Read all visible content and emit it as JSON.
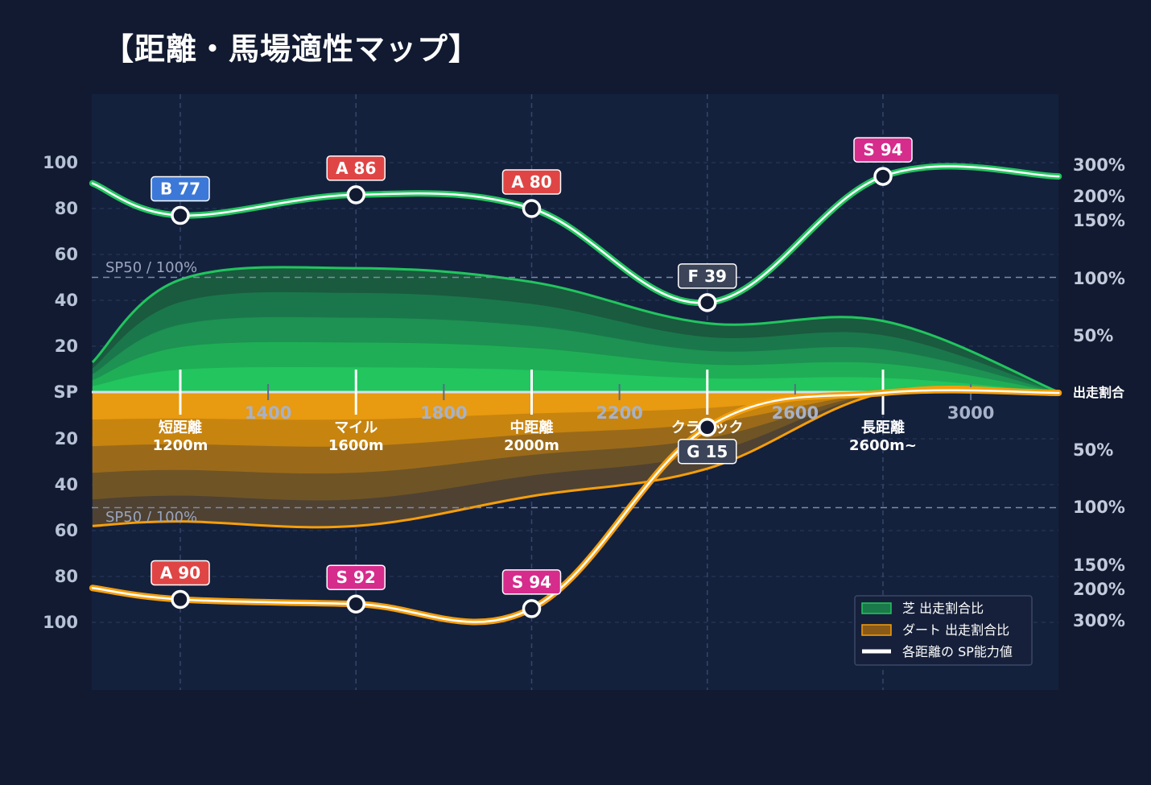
{
  "title": "【距離・馬場適性マップ】",
  "colors": {
    "background": "#111a30",
    "plot_bg": "#14213d",
    "turf": "#22c55e",
    "dirt": "#f59e0b",
    "grid": "#2b3a5c",
    "threshold": "#7f8aa8",
    "rank_S": "#d62c8c",
    "rank_A": "#e04545",
    "rank_B": "#3b78d8",
    "rank_FG": "#3b4458"
  },
  "chart_data": {
    "type": "area",
    "x_ticks": [
      "1400",
      "1800",
      "2200",
      "2600",
      "3000"
    ],
    "x_range": [
      1000,
      3200
    ],
    "sp_axis": {
      "labels": [
        "100",
        "80",
        "60",
        "40",
        "20",
        "SP",
        "20",
        "40",
        "60",
        "80",
        "100"
      ],
      "range": [
        0,
        100
      ]
    },
    "ratio_axis": {
      "upper_labels": [
        "300%",
        "200%",
        "150%",
        "100%",
        "50%"
      ],
      "middle_label": "出走割合",
      "lower_labels": [
        "50%",
        "100%",
        "150%",
        "200%",
        "300%"
      ]
    },
    "threshold_label": "SP50 / 100%",
    "categories": [
      {
        "x": 1200,
        "label": "短距離",
        "sub": "1200m"
      },
      {
        "x": 1600,
        "label": "マイル",
        "sub": "1600m"
      },
      {
        "x": 2000,
        "label": "中距離",
        "sub": "2000m"
      },
      {
        "x": 2400,
        "label": "クラシック",
        "sub": ""
      },
      {
        "x": 2800,
        "label": "長距離",
        "sub": "2600m~"
      }
    ],
    "turf": {
      "sp_curve": [
        [
          1000,
          91
        ],
        [
          1200,
          77
        ],
        [
          1600,
          86
        ],
        [
          2000,
          80
        ],
        [
          2400,
          39
        ],
        [
          2800,
          94
        ],
        [
          3200,
          94
        ]
      ],
      "points": [
        {
          "x": 1200,
          "sp": 77,
          "rank": "B"
        },
        {
          "x": 1600,
          "sp": 86,
          "rank": "A"
        },
        {
          "x": 2000,
          "sp": 80,
          "rank": "A"
        },
        {
          "x": 2400,
          "sp": 39,
          "rank": "F"
        },
        {
          "x": 2800,
          "sp": 94,
          "rank": "S"
        }
      ],
      "ratio_envelope": [
        [
          1000,
          13
        ],
        [
          1200,
          49
        ],
        [
          1600,
          54
        ],
        [
          2000,
          48
        ],
        [
          2400,
          30
        ],
        [
          2800,
          31
        ],
        [
          3200,
          0
        ]
      ]
    },
    "dirt": {
      "sp_curve": [
        [
          1000,
          85
        ],
        [
          1200,
          90
        ],
        [
          1600,
          92
        ],
        [
          2000,
          94
        ],
        [
          2400,
          15
        ],
        [
          2800,
          0
        ],
        [
          3200,
          0
        ]
      ],
      "points": [
        {
          "x": 1200,
          "sp": 90,
          "rank": "A"
        },
        {
          "x": 1600,
          "sp": 92,
          "rank": "S"
        },
        {
          "x": 2000,
          "sp": 94,
          "rank": "S"
        },
        {
          "x": 2400,
          "sp": 15,
          "rank": "G"
        }
      ],
      "ratio_envelope": [
        [
          1000,
          58
        ],
        [
          1200,
          56
        ],
        [
          1600,
          58
        ],
        [
          2000,
          45
        ],
        [
          2400,
          33
        ],
        [
          2800,
          0
        ],
        [
          3200,
          0
        ]
      ]
    },
    "legend": [
      {
        "label": "芝 出走割合比",
        "color": "#1a7a49"
      },
      {
        "label": "ダート 出走割合比",
        "color": "#8a5a18"
      },
      {
        "label": "各距離の SP能力値",
        "color": "#ffffff"
      }
    ],
    "legend_position": "bottom-right"
  }
}
